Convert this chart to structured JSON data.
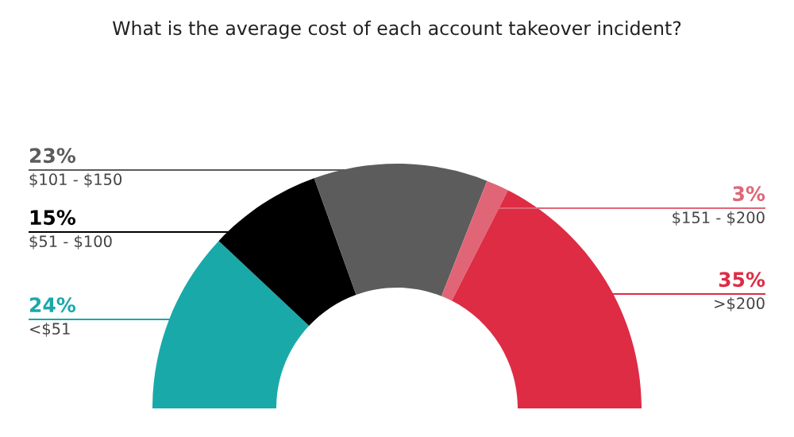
{
  "chart_data": {
    "type": "donut",
    "title": "What is the average cost of each account takeover incident?",
    "categories": [
      "<$51",
      "$51 - $100",
      "$101 - $150",
      "$151 - $200",
      ">$200"
    ],
    "values": [
      24,
      15,
      23,
      3,
      35
    ],
    "value_labels": [
      "24%",
      "15%",
      "23%",
      "3%",
      "35%"
    ],
    "colors": [
      "#1aa9a9",
      "#000000",
      "#5c5c5c",
      "#e06677",
      "#dd2c44"
    ],
    "legend": false
  }
}
